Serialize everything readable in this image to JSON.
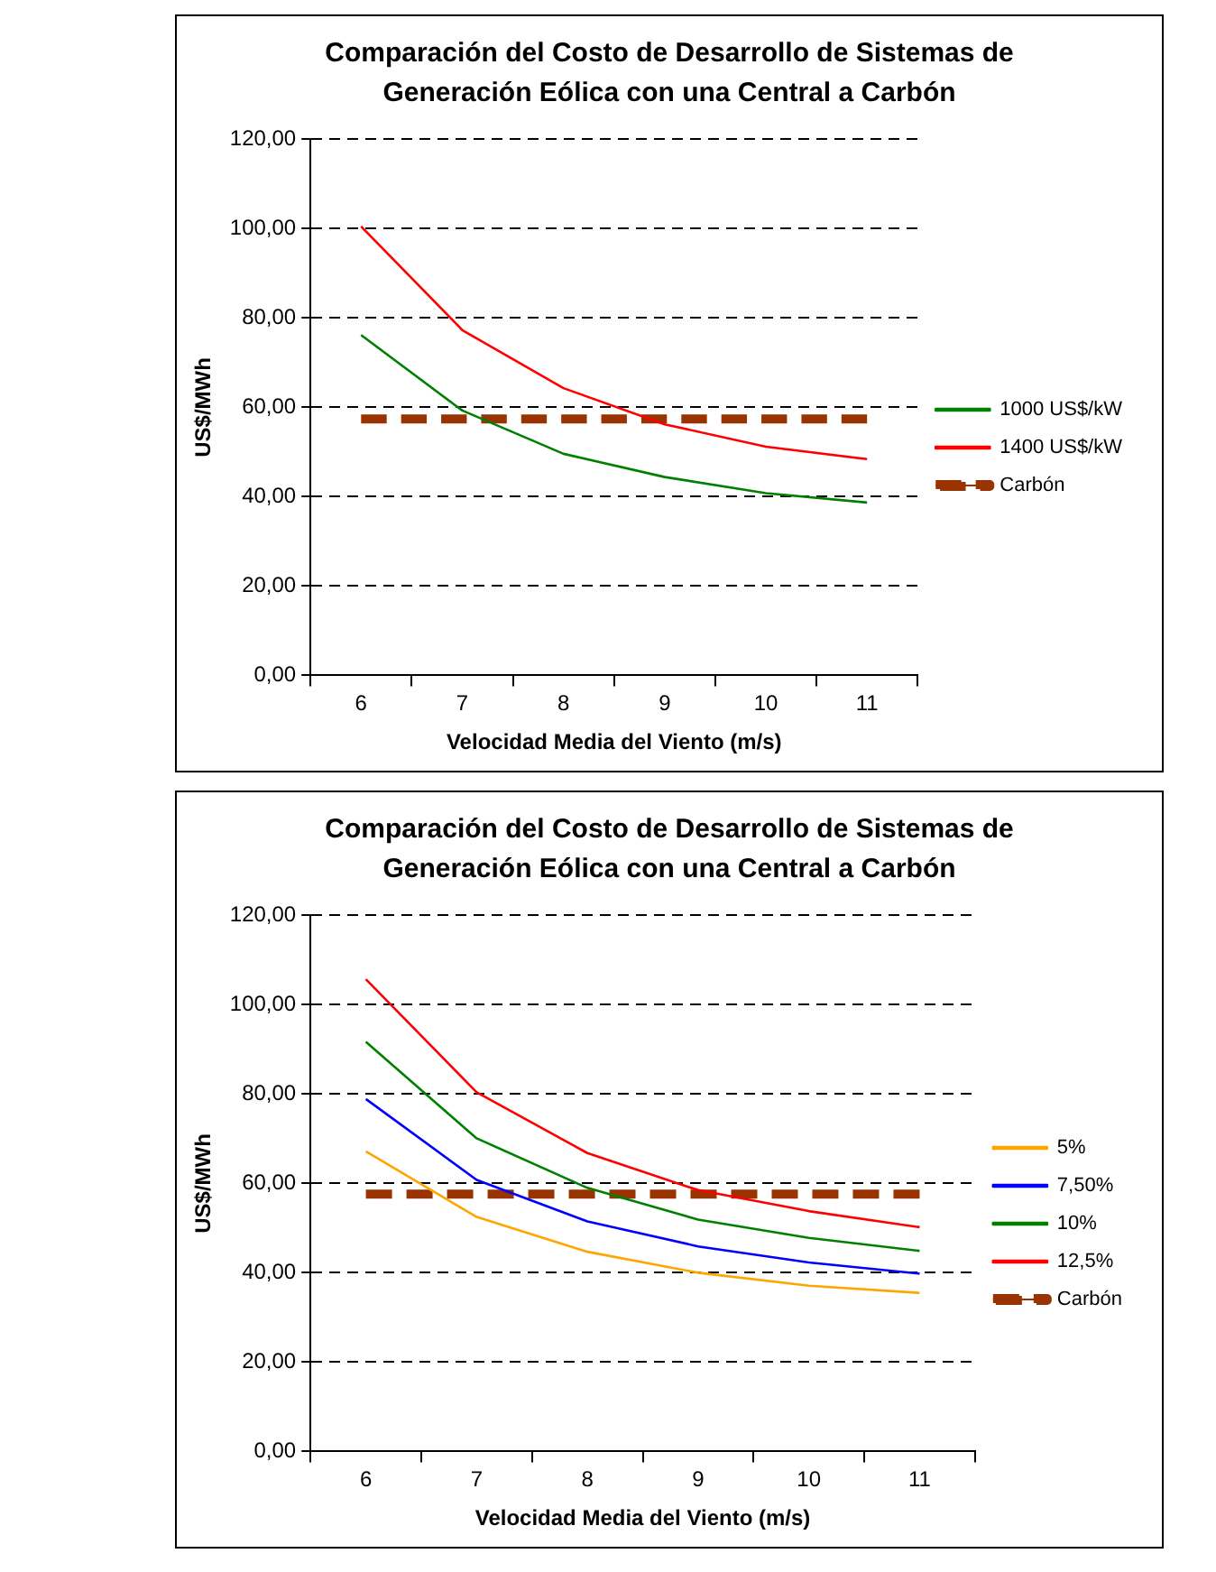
{
  "chart_data": [
    {
      "type": "line",
      "title": "Comparación del Costo de Desarrollo de Sistemas de Generación Eólica con una Central a Carbón",
      "xlabel": "Velocidad Media del Viento (m/s)",
      "ylabel": "US$/MWh",
      "categories": [
        "6",
        "7",
        "8",
        "9",
        "10",
        "11"
      ],
      "series": [
        {
          "name": "1000 US$/kW",
          "color": "#008000",
          "values": [
            76.2,
            59.3,
            49.6,
            44.4,
            40.8,
            38.7
          ]
        },
        {
          "name": "1400 US$/kW",
          "color": "#ff0000",
          "values": [
            100.5,
            77.3,
            64.3,
            56.2,
            51.2,
            48.4
          ]
        },
        {
          "name": "Carbón",
          "color": "#993300",
          "values": [
            57.4,
            57.4,
            57.4,
            57.4,
            57.4,
            57.4
          ],
          "line_style": "dashed"
        }
      ],
      "ylim": [
        0,
        120
      ],
      "yticks": [
        {
          "value": 0,
          "label": "0,00"
        },
        {
          "value": 20,
          "label": "20,00"
        },
        {
          "value": 40,
          "label": "40,00"
        },
        {
          "value": 60,
          "label": "60,00"
        },
        {
          "value": 80,
          "label": "80,00"
        },
        {
          "value": 100,
          "label": "100,00"
        },
        {
          "value": 120,
          "label": "120,00"
        }
      ],
      "grid": "y",
      "legend": "right",
      "marker": "none"
    },
    {
      "type": "line",
      "title": "Comparación del Costo de Desarrollo de Sistemas de Generación Eólica con una Central a Carbón",
      "xlabel": "Velocidad Media del Viento (m/s)",
      "ylabel": "US$/MWh",
      "categories": [
        "6",
        "7",
        "8",
        "9",
        "10",
        "11"
      ],
      "series": [
        {
          "name": "5%",
          "color": "#ffa500",
          "values": [
            67.2,
            52.5,
            44.7,
            40.0,
            37.1,
            35.5
          ]
        },
        {
          "name": "7,50%",
          "color": "#0000ff",
          "values": [
            78.9,
            60.8,
            51.5,
            45.9,
            42.3,
            39.8
          ]
        },
        {
          "name": "10%",
          "color": "#008000",
          "values": [
            91.7,
            70.1,
            59.0,
            51.9,
            47.8,
            44.9
          ]
        },
        {
          "name": "12,5%",
          "color": "#ff0000",
          "values": [
            105.7,
            80.4,
            66.8,
            58.5,
            53.8,
            50.2
          ]
        },
        {
          "name": "Carbón",
          "color": "#993300",
          "values": [
            57.6,
            57.6,
            57.6,
            57.6,
            57.6,
            57.6
          ],
          "line_style": "dashed"
        }
      ],
      "ylim": [
        0,
        120
      ],
      "yticks": [
        {
          "value": 0,
          "label": "0,00"
        },
        {
          "value": 20,
          "label": "20,00"
        },
        {
          "value": 40,
          "label": "40,00"
        },
        {
          "value": 60,
          "label": "60,00"
        },
        {
          "value": 80,
          "label": "80,00"
        },
        {
          "value": 100,
          "label": "100,00"
        },
        {
          "value": 120,
          "label": "120,00"
        }
      ],
      "grid": "y",
      "legend": "right",
      "marker": "none"
    }
  ]
}
